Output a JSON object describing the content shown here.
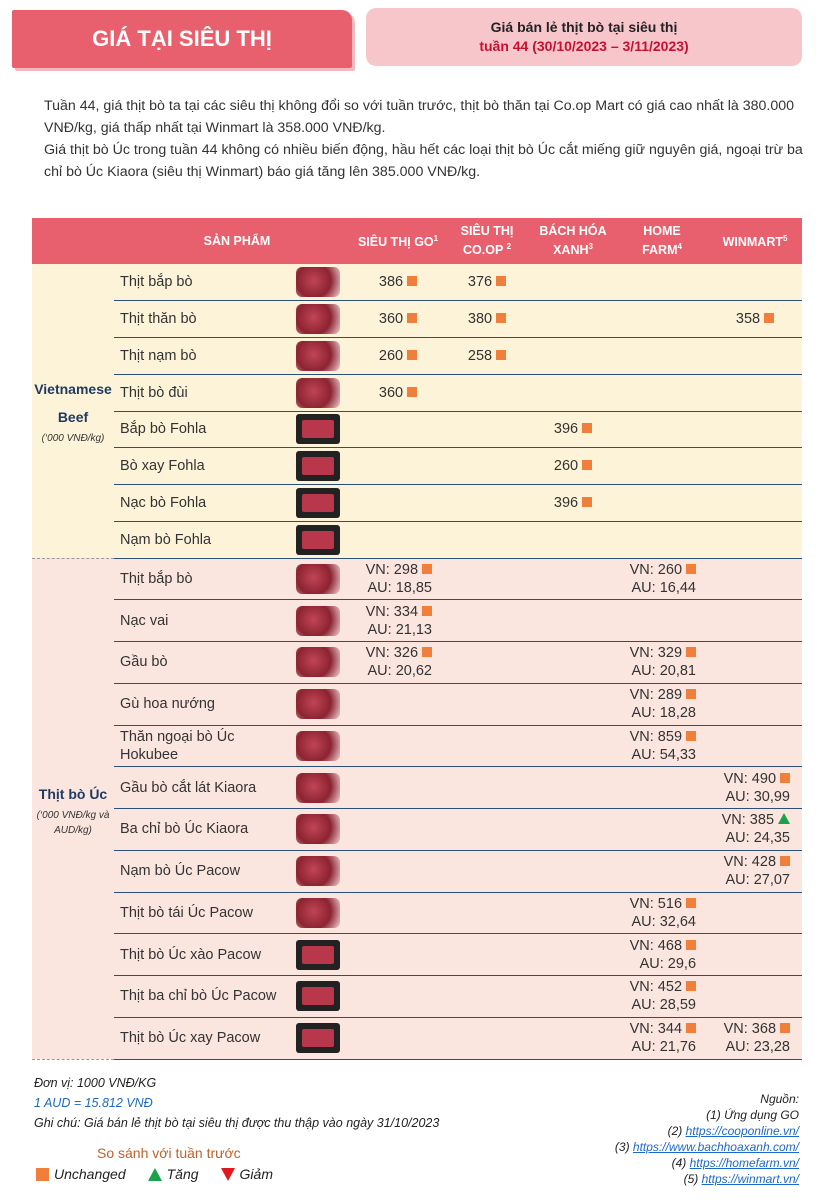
{
  "header": {
    "tag": "GIÁ TẠI SIÊU THỊ",
    "title": "Giá bán lẻ thịt bò tại siêu thị",
    "subtitle": "tuần 44 (30/10/2023 – 3/11/2023)"
  },
  "intro": {
    "p1": "Tuần 44, giá thịt bò ta tại các siêu thị không đổi so với tuần trước, thịt bò thăn tại Co.op Mart có giá cao nhất là 380.000 VNĐ/kg, giá thấp nhất tại Winmart là 358.000 VNĐ/kg.",
    "p2": "Giá thịt bò Úc trong tuần 44 không có nhiều biến động, hầu hết các loại thịt bò Úc cắt miếng giữ nguyên giá, ngoại trừ ba chỉ bò Úc Kiaora (siêu thị Winmart) báo giá tăng lên 385.000 VNĐ/kg."
  },
  "table": {
    "headers": {
      "product": "SẢN PHẨM",
      "go": "SIÊU THỊ GO",
      "go_sup": "1",
      "coop_l1": "SIÊU THỊ",
      "coop_l2": "CO.OP",
      "coop_sup": "2",
      "bhx_l1": "BÁCH HÓA",
      "bhx_l2": "XANH",
      "bhx_sup": "3",
      "hf_l1": "HOME",
      "hf_l2": "FARM",
      "hf_sup": "4",
      "wm": "WINMART",
      "wm_sup": "5"
    },
    "group_vn": {
      "name_l1": "Vietnamese",
      "name_l2": "Beef",
      "unit": "(‘000 VNĐ/kg)"
    },
    "group_au": {
      "name": "Thịt bò Úc",
      "unit_l1": "(‘000 VNĐ/kg và",
      "unit_l2": "AUD/kg)"
    },
    "vn_rows": [
      {
        "name": "Thịt bắp bò",
        "icon": "beef-shank-photo",
        "go": "386",
        "coop": "376",
        "bhx": "",
        "wm": ""
      },
      {
        "name": "Thịt thăn bò",
        "icon": "beef-tenderloin-photo",
        "go": "360",
        "coop": "380",
        "bhx": "",
        "wm": "358"
      },
      {
        "name": "Thịt nạm bò",
        "icon": "beef-flank-photo",
        "go": "260",
        "coop": "258",
        "bhx": "",
        "wm": ""
      },
      {
        "name": "Thịt bò đùi",
        "icon": "beef-thigh-photo",
        "go": "360",
        "coop": "",
        "bhx": "",
        "wm": ""
      },
      {
        "name": "Bắp bò Fohla",
        "icon": "packaged-beef-photo",
        "go": "",
        "coop": "",
        "bhx": "396",
        "wm": ""
      },
      {
        "name": "Bò xay Fohla",
        "icon": "packaged-ground-beef-photo",
        "go": "",
        "coop": "",
        "bhx": "260",
        "wm": ""
      },
      {
        "name": "Nạc bò Fohla",
        "icon": "packaged-lean-beef-photo",
        "go": "",
        "coop": "",
        "bhx": "396",
        "wm": ""
      },
      {
        "name": "Nạm bò Fohla",
        "icon": "packaged-flank-photo",
        "go": "",
        "coop": "",
        "bhx": "",
        "wm": ""
      }
    ],
    "au_rows": [
      {
        "name": "Thịt bắp bò",
        "icon": "beef-shank-photo",
        "go_vn": "VN: 298",
        "go_au": "AU: 18,85",
        "hf_vn": "VN: 260",
        "hf_au": "AU: 16,44",
        "wm_vn": "",
        "wm_au": ""
      },
      {
        "name": "Nạc vai",
        "icon": "beef-shoulder-photo",
        "go_vn": "VN: 334",
        "go_au": "AU: 21,13",
        "hf_vn": "",
        "hf_au": "",
        "wm_vn": "",
        "wm_au": ""
      },
      {
        "name": "Gầu bò",
        "icon": "beef-brisket-photo",
        "go_vn": "VN: 326",
        "go_au": "AU: 20,62",
        "hf_vn": "VN: 329",
        "hf_au": "AU: 20,81",
        "wm_vn": "",
        "wm_au": ""
      },
      {
        "name": "Gù hoa nướng",
        "icon": "grill-hump-photo",
        "go_vn": "",
        "go_au": "",
        "hf_vn": "VN: 289",
        "hf_au": "AU: 18,28",
        "wm_vn": "",
        "wm_au": ""
      },
      {
        "name": "Thăn ngoại bò Úc Hokubee",
        "icon": "striploin-photo",
        "go_vn": "",
        "go_au": "",
        "hf_vn": "VN: 859",
        "hf_au": "AU: 54,33",
        "wm_vn": "",
        "wm_au": ""
      },
      {
        "name": "Gầu bò cắt lát Kiaora",
        "icon": "sliced-brisket-photo",
        "go_vn": "",
        "go_au": "",
        "hf_vn": "",
        "hf_au": "",
        "wm_vn": "VN: 490",
        "wm_au": "AU: 30,99"
      },
      {
        "name": "Ba chỉ bò Úc Kiaora",
        "icon": "beef-belly-photo",
        "go_vn": "",
        "go_au": "",
        "hf_vn": "",
        "hf_au": "",
        "wm_vn": "VN: 385",
        "wm_au": "AU: 24,35",
        "wm_up": true
      },
      {
        "name": "Nạm bò Úc Pacow",
        "icon": "flank-photo",
        "go_vn": "",
        "go_au": "",
        "hf_vn": "",
        "hf_au": "",
        "wm_vn": "VN: 428",
        "wm_au": "AU: 27,07"
      },
      {
        "name": "Thịt bò tái Úc Pacow",
        "icon": "rare-beef-photo",
        "go_vn": "",
        "go_au": "",
        "hf_vn": "VN: 516",
        "hf_au": "AU: 32,64",
        "wm_vn": "",
        "wm_au": ""
      },
      {
        "name": "Thịt bò Úc xào Pacow",
        "icon": "stirfry-beef-pack-photo",
        "go_vn": "",
        "go_au": "",
        "hf_vn": "VN: 468",
        "hf_au": "AU: 29,6",
        "wm_vn": "",
        "wm_au": ""
      },
      {
        "name": "Thịt ba chỉ bò Úc Pacow",
        "icon": "belly-beef-pack-photo",
        "go_vn": "",
        "go_au": "",
        "hf_vn": "VN: 452",
        "hf_au": "AU: 28,59",
        "wm_vn": "",
        "wm_au": ""
      },
      {
        "name": "Thịt bò Úc xay Pacow",
        "icon": "ground-beef-pack-photo",
        "go_vn": "",
        "go_au": "",
        "hf_vn": "VN: 344",
        "hf_au": "AU: 21,76",
        "wm_vn": "VN: 368",
        "wm_au": "AU: 23,28"
      }
    ]
  },
  "footer": {
    "unit": "Đơn vị: 1000 VNĐ/KG",
    "rate": "1 AUD = 15.812 VNĐ",
    "note": "Ghi chú: Giá bán lẻ thịt bò tại siêu thị được thu thập vào ngày 31/10/2023",
    "legend_title": "So sánh với tuần trước",
    "legend_unchanged": "Unchanged",
    "legend_up": "Tăng",
    "legend_down": "Giảm",
    "sources_title": "Nguồn:",
    "src1": "(1) Ứng dụng GO",
    "src2_prefix": "(2) ",
    "src2": "https://cooponline.vn/",
    "src3_prefix": "(3) ",
    "src3": "https://www.bachhoaxanh.com/",
    "src4_prefix": "(4) ",
    "src4": "https://homefarm.vn/",
    "src5_prefix": "(5) ",
    "src5": "https://winmart.vn/"
  },
  "colors": {
    "header_red": "#e8606d",
    "unchanged_orange": "#f07f3c",
    "up_green": "#1aa34a",
    "down_red": "#e0191f",
    "vn_bg": "#fdf3d8",
    "au_bg": "#fbe6df"
  }
}
